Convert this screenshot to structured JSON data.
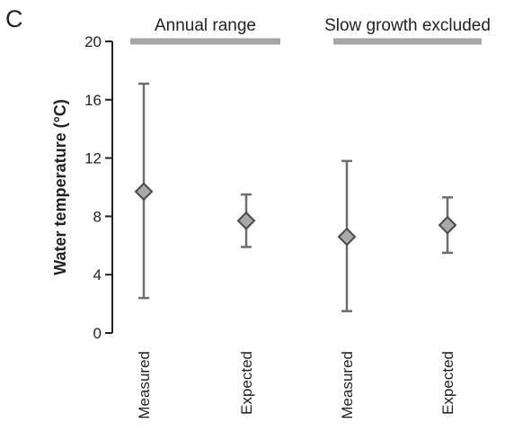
{
  "panel_letter": "C",
  "colors": {
    "axis": "#222222",
    "error_bar": "#6e6e6e",
    "group_bar": "#a6a6a6",
    "marker_fill": "#a9a9a9",
    "marker_stroke": "#4a4a4a"
  },
  "chart_data": {
    "type": "scatter",
    "ylabel": "Water temperature (°C)",
    "ylim": [
      0,
      20
    ],
    "yticks": [
      0,
      4,
      8,
      12,
      16,
      20
    ],
    "categories": [
      "Measured",
      "Expected",
      "Measured",
      "Expected"
    ],
    "groups": [
      {
        "label": "Annual range",
        "categories": [
          0,
          1
        ]
      },
      {
        "label": "Slow growth excluded",
        "categories": [
          2,
          3
        ]
      }
    ],
    "points": [
      {
        "value": 9.7,
        "low": 2.4,
        "high": 17.1
      },
      {
        "value": 7.7,
        "low": 5.9,
        "high": 9.5
      },
      {
        "value": 6.6,
        "low": 1.5,
        "high": 11.8
      },
      {
        "value": 7.4,
        "low": 5.5,
        "high": 9.3
      }
    ],
    "grid": false,
    "legend": "none"
  }
}
